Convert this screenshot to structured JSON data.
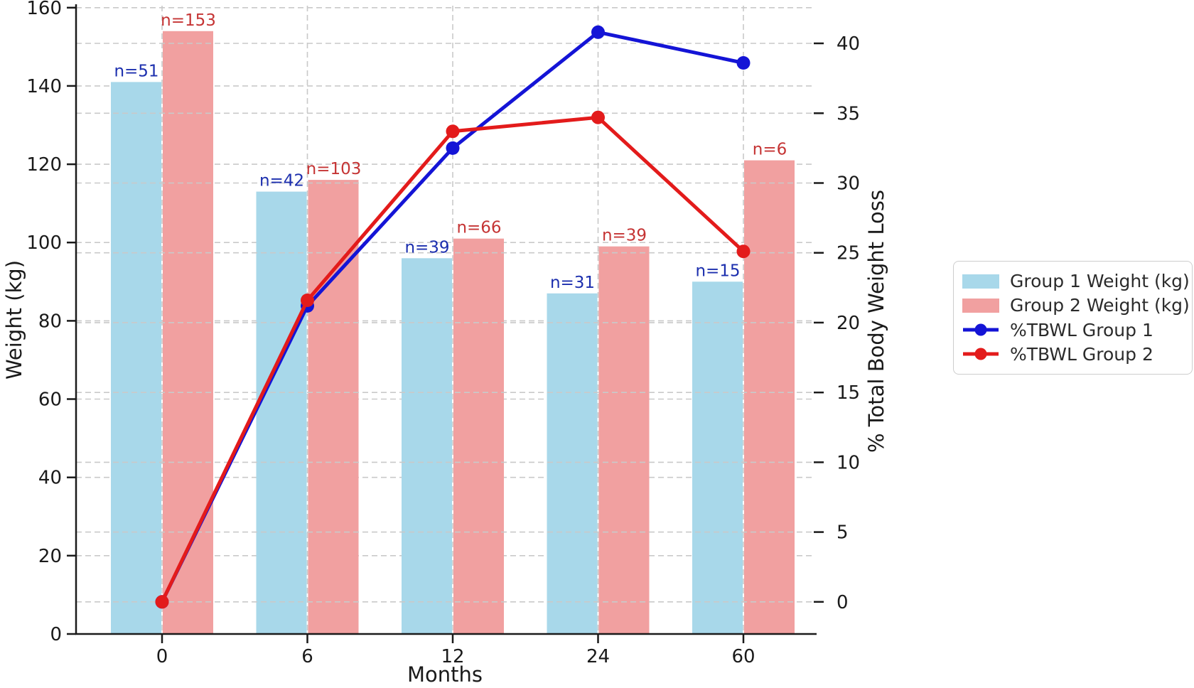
{
  "figure": {
    "background": "#ffffff"
  },
  "chart_data": {
    "type": "combo-bar-line",
    "categories": [
      "0",
      "6",
      "12",
      "24",
      "60"
    ],
    "xlabel": "Months",
    "ylabel_left": "Weight (kg)",
    "ylabel_right": "% Total Body Weight Loss",
    "yticks_left": [
      0,
      20,
      40,
      60,
      80,
      100,
      120,
      140,
      160
    ],
    "yticks_right": [
      0,
      5,
      10,
      15,
      20,
      25,
      30,
      35,
      40
    ],
    "ylim_left": [
      0,
      160.5
    ],
    "ylim_right": [
      -2.3,
      42.7
    ],
    "grid": "dashed, both axes, horizontal + vertical at x ticks",
    "legend_position": "center right, outside plot",
    "series": [
      {
        "name": "Group 1 Weight (kg)",
        "type": "bar",
        "axis": "left",
        "color": "#A8D8EA",
        "values": [
          141,
          113,
          96,
          87,
          90
        ],
        "point_labels": [
          "n=51",
          "n=42",
          "n=39",
          "n=31",
          "n=15"
        ],
        "label_color": "#1C2FAE"
      },
      {
        "name": "Group 2 Weight (kg)",
        "type": "bar",
        "axis": "left",
        "color": "#F1A0A0",
        "values": [
          154,
          116,
          101,
          99,
          121
        ],
        "point_labels": [
          "n=153",
          "n=103",
          "n=66",
          "n=39",
          "n=6"
        ],
        "label_color": "#C53434"
      },
      {
        "name": "%TBWL Group 1",
        "type": "line",
        "axis": "right",
        "color": "#1414D6",
        "values": [
          0,
          21.2,
          32.5,
          40.8,
          38.6
        ]
      },
      {
        "name": "%TBWL Group 2",
        "type": "line",
        "axis": "right",
        "color": "#E31B1B",
        "values": [
          0,
          21.6,
          33.7,
          34.7,
          25.1
        ]
      }
    ]
  },
  "colors": {
    "grid": "#C9C9C9",
    "axis": "#1A1A1A",
    "tick_text": "#1A1A1A",
    "legend_border": "#CDCDCD",
    "legend_text": "#2B2B2B"
  }
}
